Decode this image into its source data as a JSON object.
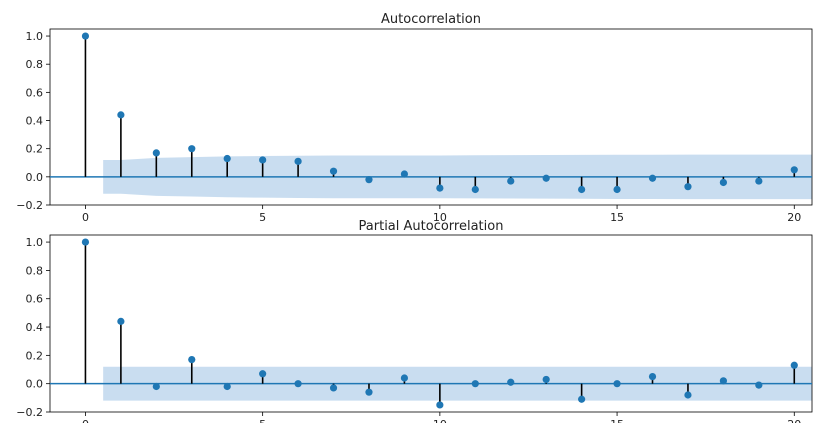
{
  "chart_data": [
    {
      "type": "stem",
      "title": "Autocorrelation",
      "xlabel": "",
      "ylabel": "",
      "xlim": [
        -1,
        20.5
      ],
      "ylim": [
        -0.2,
        1.05
      ],
      "xticks": [
        0,
        5,
        10,
        15,
        20
      ],
      "xtick_labels": [
        "0",
        "5",
        "10",
        "15",
        "20"
      ],
      "yticks": [
        -0.2,
        0.0,
        0.2,
        0.4,
        0.6,
        0.8,
        1.0
      ],
      "ytick_labels": [
        "−0.2",
        "0.0",
        "0.2",
        "0.4",
        "0.6",
        "0.8",
        "1.0"
      ],
      "lags": [
        0,
        1,
        2,
        3,
        4,
        5,
        6,
        7,
        8,
        9,
        10,
        11,
        12,
        13,
        14,
        15,
        16,
        17,
        18,
        19,
        20
      ],
      "values": [
        1.0,
        0.44,
        0.17,
        0.2,
        0.13,
        0.12,
        0.11,
        0.04,
        -0.02,
        0.02,
        -0.08,
        -0.09,
        -0.03,
        -0.01,
        -0.09,
        -0.09,
        -0.01,
        -0.07,
        -0.04,
        -0.03,
        0.05
      ],
      "confidence_band": {
        "x": [
          0.5,
          1,
          2,
          3,
          4,
          5,
          6,
          7,
          8,
          9,
          10,
          11,
          12,
          13,
          14,
          15,
          16,
          17,
          18,
          19,
          20,
          20.5
        ],
        "upper": [
          0.12,
          0.12,
          0.135,
          0.14,
          0.145,
          0.148,
          0.15,
          0.152,
          0.152,
          0.152,
          0.152,
          0.153,
          0.154,
          0.155,
          0.156,
          0.157,
          0.157,
          0.158,
          0.158,
          0.158,
          0.158,
          0.158
        ]
      },
      "colors": {
        "marker": "#1f77b4",
        "stem": "#000000",
        "baseline": "#1f77b4",
        "band": "#c6dbef"
      }
    },
    {
      "type": "stem",
      "title": "Partial Autocorrelation",
      "xlabel": "",
      "ylabel": "",
      "xlim": [
        -1,
        20.5
      ],
      "ylim": [
        -0.2,
        1.05
      ],
      "xticks": [
        0,
        5,
        10,
        15,
        20
      ],
      "xtick_labels": [
        "0",
        "5",
        "10",
        "15",
        "20"
      ],
      "yticks": [
        -0.2,
        0.0,
        0.2,
        0.4,
        0.6,
        0.8,
        1.0
      ],
      "ytick_labels": [
        "−0.2",
        "0.0",
        "0.2",
        "0.4",
        "0.6",
        "0.8",
        "1.0"
      ],
      "lags": [
        0,
        1,
        2,
        3,
        4,
        5,
        6,
        7,
        8,
        9,
        10,
        11,
        12,
        13,
        14,
        15,
        16,
        17,
        18,
        19,
        20
      ],
      "values": [
        1.0,
        0.44,
        -0.02,
        0.17,
        -0.02,
        0.07,
        0.0,
        -0.03,
        -0.06,
        0.04,
        -0.15,
        0.0,
        0.01,
        0.03,
        -0.11,
        0.0,
        0.05,
        -0.08,
        0.02,
        -0.01,
        0.13
      ],
      "confidence_band": {
        "x": [
          0.5,
          20.5
        ],
        "upper": [
          0.12,
          0.12
        ]
      },
      "colors": {
        "marker": "#1f77b4",
        "stem": "#000000",
        "baseline": "#1f77b4",
        "band": "#c6dbef"
      }
    }
  ]
}
